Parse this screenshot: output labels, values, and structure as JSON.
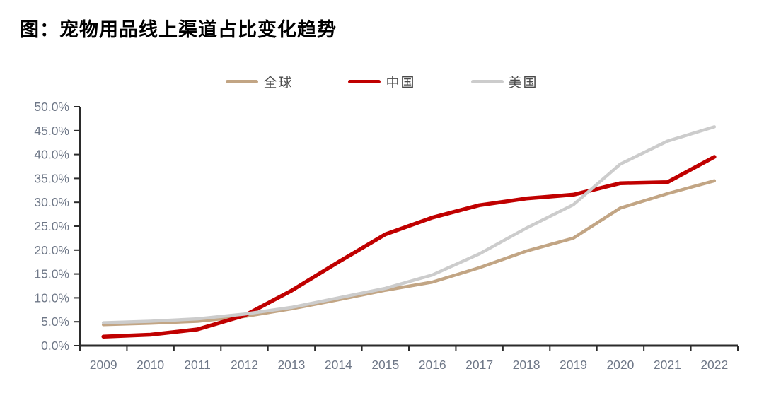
{
  "page": {
    "title": "图：宠物用品线上渠道占比变化趋势"
  },
  "chart_data": {
    "type": "line",
    "title": "图：宠物用品线上渠道占比变化趋势",
    "x": [
      "2009",
      "2010",
      "2011",
      "2012",
      "2013",
      "2014",
      "2015",
      "2016",
      "2017",
      "2018",
      "2019",
      "2020",
      "2021",
      "2022"
    ],
    "series": [
      {
        "key": "global",
        "name": "全球",
        "color": "#C2A584",
        "values": [
          4.4,
          4.7,
          5.1,
          6.1,
          7.7,
          9.6,
          11.6,
          13.3,
          16.3,
          19.8,
          22.5,
          28.8,
          31.8,
          34.5
        ]
      },
      {
        "key": "china",
        "name": "中国",
        "color": "#C00000",
        "values": [
          1.9,
          2.3,
          3.4,
          6.3,
          11.5,
          17.5,
          23.3,
          26.8,
          29.4,
          30.8,
          31.6,
          34.0,
          34.2,
          39.5
        ]
      },
      {
        "key": "us",
        "name": "美国",
        "color": "#CCCCCC",
        "values": [
          4.8,
          5.1,
          5.6,
          6.6,
          8.0,
          10.0,
          12.0,
          14.8,
          19.2,
          24.6,
          29.5,
          38.0,
          42.8,
          45.8
        ]
      }
    ],
    "draw_order": [
      0,
      1,
      2
    ],
    "xlabel": "",
    "ylabel": "",
    "ylim": [
      0,
      50
    ],
    "ytick_step": 5,
    "yticks": [
      "0.0%",
      "5.0%",
      "10.0%",
      "15.0%",
      "20.0%",
      "25.0%",
      "30.0%",
      "35.0%",
      "40.0%",
      "45.0%",
      "50.0%"
    ],
    "grid": false,
    "legend_position": "top-center",
    "axis_color": "#2b2b2b",
    "tick_label_color": "#6E7787",
    "line_widths": {
      "global": 4.5,
      "china": 5.5,
      "us": 4.5
    }
  }
}
